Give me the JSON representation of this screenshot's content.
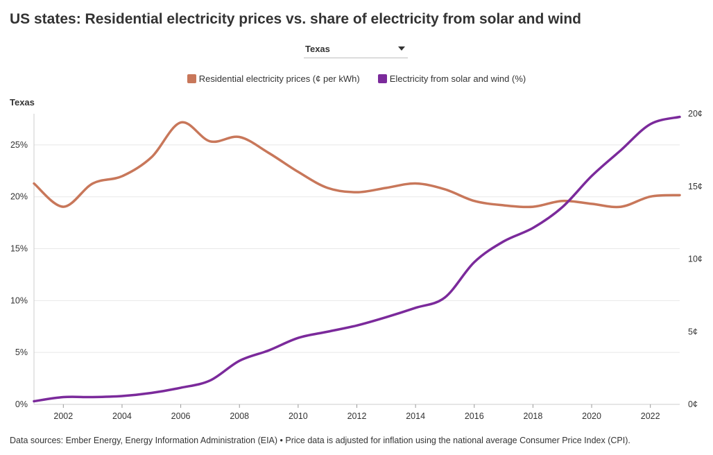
{
  "title": "US states: Residential electricity prices vs. share of electricity from solar and wind",
  "dropdown": {
    "selected": "Texas"
  },
  "legend": [
    {
      "label": "Residential electricity prices (¢ per kWh)",
      "color": "#c8775a"
    },
    {
      "label": "Electricity from solar and wind (%)",
      "color": "#7b2a9b"
    }
  ],
  "chart_label": "Texas",
  "footer": "Data sources: Ember Energy, Energy Information Administration (EIA) • Price data is adjusted for inflation using the national average Consumer Price Index (CPI).",
  "chart_data": {
    "type": "line",
    "x_ticks": [
      "2002",
      "2004",
      "2006",
      "2008",
      "2010",
      "2012",
      "2014",
      "2016",
      "2018",
      "2020",
      "2022"
    ],
    "left_axis": {
      "ticks": [
        "0%",
        "5%",
        "10%",
        "15%",
        "20%",
        "25%"
      ],
      "range": [
        0,
        28
      ]
    },
    "right_axis": {
      "ticks": [
        "0¢",
        "5¢",
        "10¢",
        "15¢",
        "20¢"
      ],
      "range": [
        0,
        20
      ]
    },
    "x_range": [
      2001,
      2023
    ],
    "grid": true,
    "legend_position": "top-center",
    "series": [
      {
        "name": "Residential electricity prices (¢ per kWh)",
        "axis": "right",
        "color": "#c8775a",
        "x": [
          2001,
          2002,
          2003,
          2004,
          2005,
          2006,
          2007,
          2008,
          2009,
          2010,
          2011,
          2012,
          2013,
          2014,
          2015,
          2016,
          2017,
          2018,
          2019,
          2020,
          2021,
          2022,
          2023
        ],
        "y": [
          15.2,
          13.6,
          15.2,
          15.7,
          17.0,
          19.4,
          18.1,
          18.4,
          17.3,
          16.0,
          14.9,
          14.6,
          14.9,
          15.2,
          14.8,
          14.0,
          13.7,
          13.6,
          14.0,
          13.8,
          13.6,
          14.3,
          14.4
        ]
      },
      {
        "name": "Electricity from solar and wind (%)",
        "axis": "left",
        "color": "#7b2a9b",
        "x": [
          2001,
          2002,
          2003,
          2004,
          2005,
          2006,
          2007,
          2008,
          2009,
          2010,
          2011,
          2012,
          2013,
          2014,
          2015,
          2016,
          2017,
          2018,
          2019,
          2020,
          2021,
          2022,
          2023
        ],
        "y": [
          0.3,
          0.7,
          0.7,
          0.8,
          1.1,
          1.6,
          2.3,
          4.2,
          5.2,
          6.4,
          7.0,
          7.6,
          8.4,
          9.3,
          10.3,
          13.7,
          15.7,
          17.0,
          19.0,
          22.0,
          24.5,
          27.0,
          27.7
        ]
      }
    ]
  }
}
